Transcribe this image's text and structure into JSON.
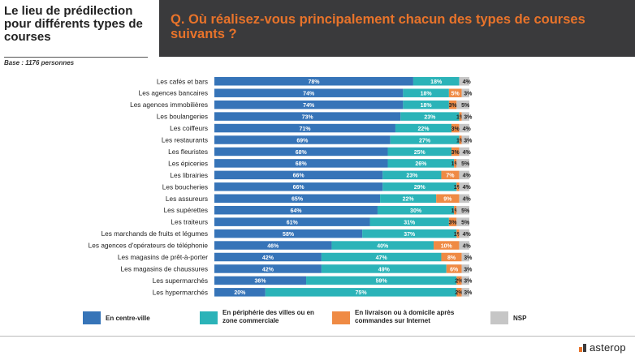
{
  "header": {
    "left_title": "Le lieu de prédilection pour différents types de courses",
    "base_note": "Base : 1176 personnes",
    "question": "Q. Où réalisez-vous principalement chacun des types de courses suivants ?"
  },
  "chart_data": {
    "type": "bar",
    "orientation": "horizontal",
    "stacked": true,
    "xlim": [
      0,
      100
    ],
    "categories": [
      "Les cafés et bars",
      "Les agences bancaires",
      "Les agences immobilières",
      "Les boulangeries",
      "Les coiffeurs",
      "Les restaurants",
      "Les fleuristes",
      "Les épiceries",
      "Les librairies",
      "Les boucheries",
      "Les assureurs",
      "Les supérettes",
      "Les traiteurs",
      "Les marchands de fruits et légumes",
      "Les agences d'opérateurs de téléphonie",
      "Les magasins de prêt-à-porter",
      "Les magasins de chaussures",
      "Les supermarchés",
      "Les hypermarchés"
    ],
    "series": [
      {
        "name": "En centre-ville",
        "color": "#3674b8",
        "values": [
          78,
          74,
          74,
          73,
          71,
          69,
          68,
          68,
          66,
          66,
          65,
          64,
          61,
          58,
          46,
          42,
          42,
          36,
          20
        ]
      },
      {
        "name": "En périphérie des villes ou en zone commerciale",
        "color": "#2bb3b8",
        "values": [
          18,
          18,
          18,
          23,
          22,
          27,
          25,
          26,
          23,
          29,
          22,
          30,
          31,
          37,
          40,
          47,
          49,
          59,
          75
        ]
      },
      {
        "name": "En livraison ou à domicile après commandes sur Internet",
        "color": "#ef8a44",
        "values": [
          0,
          5,
          3,
          1,
          3,
          1,
          3,
          1,
          7,
          1,
          9,
          1,
          3,
          1,
          10,
          8,
          6,
          2,
          2
        ]
      },
      {
        "name": "NSP",
        "color": "#c6c6c6",
        "values": [
          4,
          3,
          5,
          3,
          4,
          3,
          4,
          5,
          4,
          4,
          4,
          5,
          5,
          4,
          4,
          3,
          3,
          3,
          3
        ]
      }
    ],
    "labels": [
      [
        "78%",
        "18%",
        "",
        "4%"
      ],
      [
        "74%",
        "18%",
        "5%",
        "3%"
      ],
      [
        "74%",
        "18%",
        "3%",
        "5%"
      ],
      [
        "73%",
        "23%",
        "1%",
        "3%"
      ],
      [
        "71%",
        "22%",
        "3%",
        "4%"
      ],
      [
        "69%",
        "27%",
        "1%",
        "3%"
      ],
      [
        "68%",
        "25%",
        "3%",
        "4%"
      ],
      [
        "68%",
        "26%",
        "1%",
        "5%"
      ],
      [
        "66%",
        "23%",
        "7%",
        "4%"
      ],
      [
        "66%",
        "29%",
        "1%",
        "4%"
      ],
      [
        "65%",
        "22%",
        "9%",
        "4%"
      ],
      [
        "64%",
        "30%",
        "1%",
        "5%"
      ],
      [
        "61%",
        "31%",
        "3%",
        "5%"
      ],
      [
        "58%",
        "37%",
        "1%",
        "4%"
      ],
      [
        "46%",
        "40%",
        "10%",
        "4%"
      ],
      [
        "42%",
        "47%",
        "8%",
        "3%"
      ],
      [
        "42%",
        "49%",
        "6%",
        "3%"
      ],
      [
        "36%",
        "59%",
        "2%",
        "3%"
      ],
      [
        "20%",
        "75%",
        "2%",
        "3%"
      ]
    ],
    "legend_position": "bottom",
    "grid": false
  },
  "legend": {
    "items": [
      {
        "label": "En centre-ville",
        "color": "#3674b8"
      },
      {
        "label": "En périphérie des villes ou en zone commerciale",
        "color": "#2bb3b8"
      },
      {
        "label": "En livraison ou à domicile après commandes sur Internet",
        "color": "#ef8a44"
      },
      {
        "label": "NSP",
        "color": "#c6c6c6"
      }
    ]
  },
  "footer": {
    "logo_text": "asterop"
  }
}
